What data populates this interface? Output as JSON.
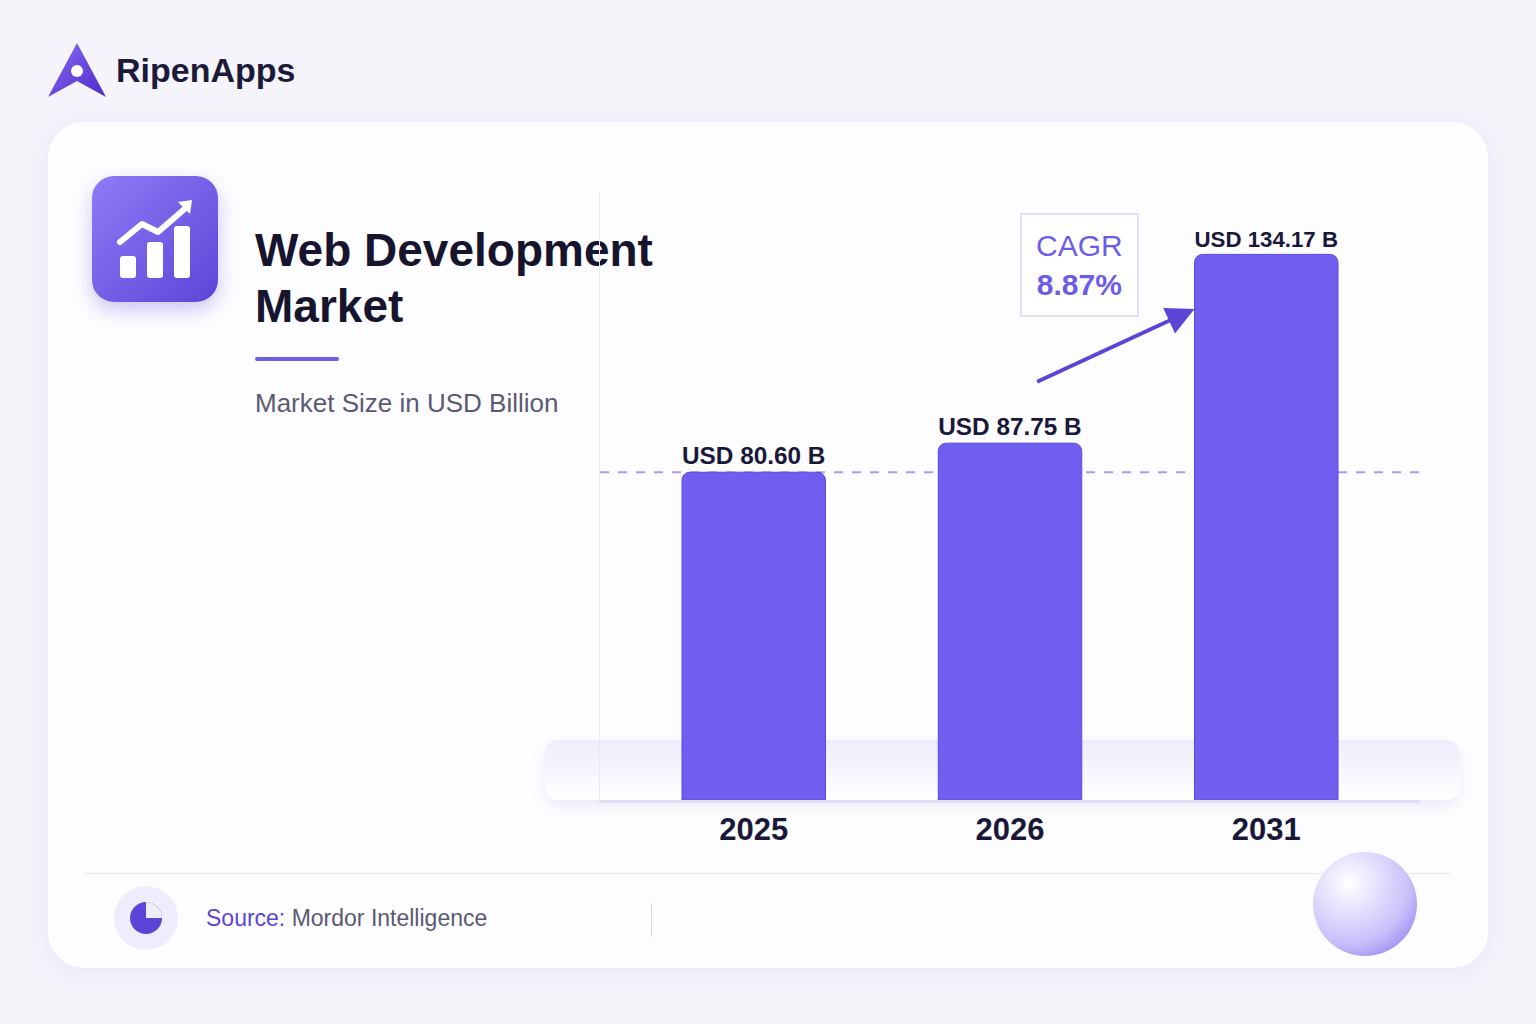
{
  "brand": "RipenApps",
  "chart_data": {
    "type": "bar",
    "title": "Web Development Market",
    "subtitle": "Market Size in USD Billion",
    "categories": [
      "2025",
      "2026",
      "2031"
    ],
    "values": [
      80.6,
      87.75,
      134.17
    ],
    "value_labels": [
      "USD 80.60 B",
      "USD 87.75 B",
      "USD 134.17 B"
    ],
    "data_labels": true,
    "color": "#6f5ef0",
    "ylim": [
      0,
      150
    ],
    "tick_labels": "x",
    "grid": false,
    "annotations": [
      {
        "label": "CAGR",
        "text": "8.87%"
      }
    ]
  },
  "source": {
    "label": "Source:",
    "text": "Mordor Intelligence"
  }
}
